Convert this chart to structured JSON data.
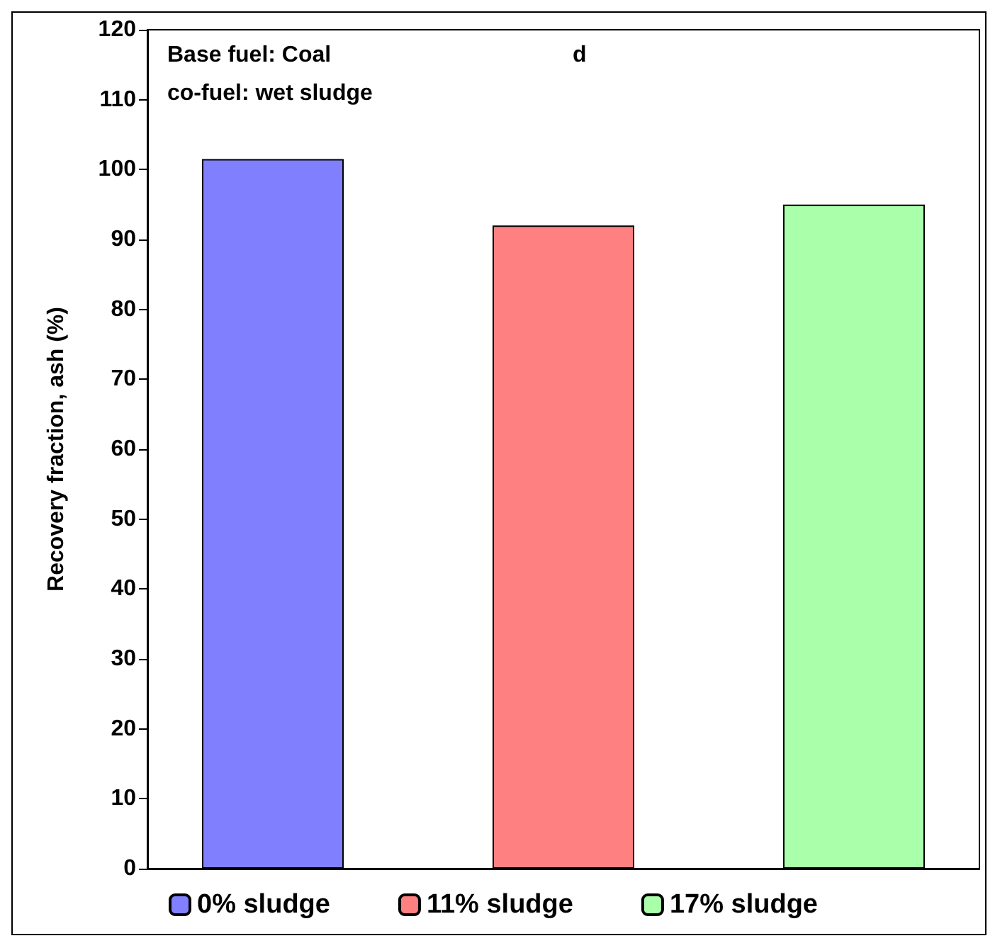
{
  "chart_data": {
    "type": "bar",
    "ylabel": "Recovery fraction, ash (%)",
    "categories": [
      null
    ],
    "series": [
      {
        "name": "0% sludge",
        "color": "#8080ff",
        "values": [
          101.5
        ]
      },
      {
        "name": "11% sludge",
        "color": "#ff8080",
        "values": [
          92
        ]
      },
      {
        "name": "17% sludge",
        "color": "#aaffaa",
        "values": [
          95
        ]
      }
    ],
    "ylim": [
      0,
      120
    ],
    "yticks": [
      0,
      10,
      20,
      30,
      40,
      50,
      60,
      70,
      80,
      90,
      100,
      110,
      120
    ],
    "grid": false,
    "legend": "bottom",
    "annotations": [
      "Base fuel: Coal",
      "d",
      "co-fuel: wet sludge"
    ]
  }
}
